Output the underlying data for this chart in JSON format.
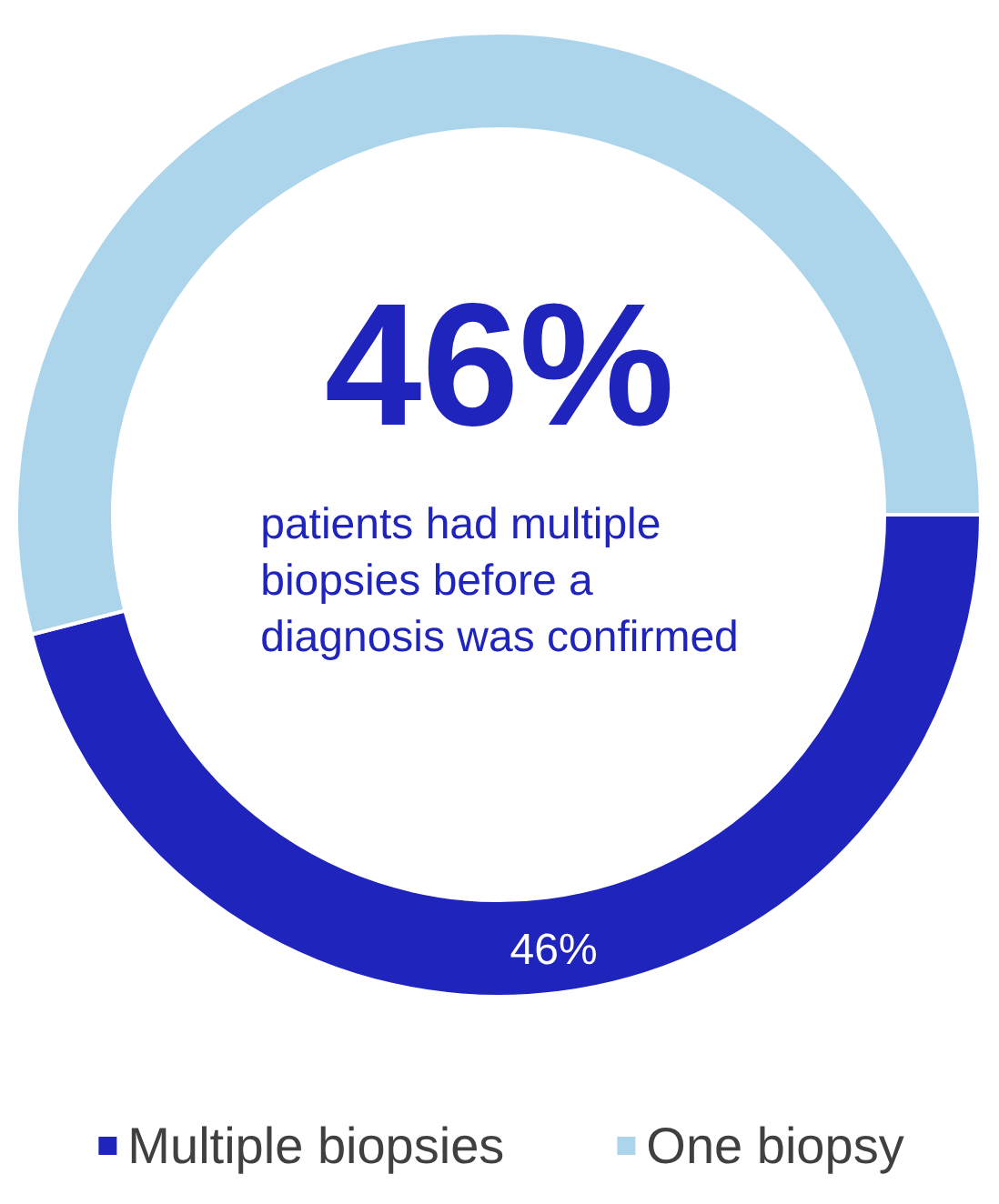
{
  "chart_data": {
    "type": "donut",
    "categories": [
      "Multiple biopsies",
      "One biopsy"
    ],
    "values": [
      46,
      54
    ],
    "colors": [
      "#1f24bd",
      "#acd5eb"
    ],
    "value_labels": [
      "46%",
      null
    ],
    "annotations": [
      "46%",
      "patients had multiple\nbiopsies before a\ndiagnosis was confirmed"
    ],
    "legend": "bottom"
  }
}
